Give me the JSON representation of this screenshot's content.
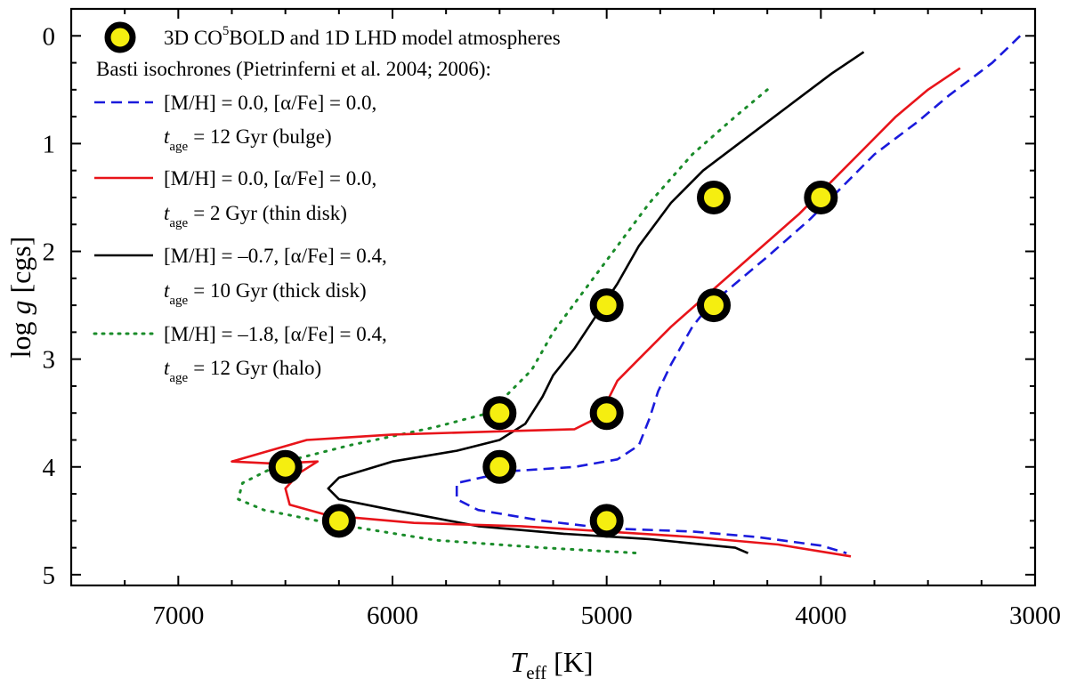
{
  "chart_data": {
    "type": "line",
    "xlabel": "T",
    "xlabel_sub": "eff",
    "xlabel_unit": "[K]",
    "ylabel_prefix": "log ",
    "ylabel_var": "g",
    "ylabel_unit": "[cgs]",
    "xlim": [
      7500,
      3000
    ],
    "ylim": [
      -0.25,
      5.1
    ],
    "x_ticks": [
      7000,
      6000,
      5000,
      4000,
      3000
    ],
    "x_tick_labels": [
      "7000",
      "6000",
      "5000",
      "4000",
      "3000"
    ],
    "y_ticks": [
      0,
      1,
      2,
      3,
      4,
      5
    ],
    "y_tick_labels": [
      "0",
      "1",
      "2",
      "3",
      "4",
      "5"
    ],
    "grid": false,
    "legend": {
      "position": "top-left",
      "models_label_a": "3D CO",
      "models_label_sup": "5",
      "models_label_b": "BOLD and 1D LHD model atmospheres",
      "isochrones_header": "Basti isochrones (Pietrinferni et al. 2004; 2006):",
      "age_sub": "age"
    },
    "models": {
      "name": "3D CO5BOLD and 1D LHD model atmospheres",
      "points": [
        [
          4000,
          1.5
        ],
        [
          4500,
          1.5
        ],
        [
          4500,
          2.5
        ],
        [
          5000,
          2.5
        ],
        [
          5000,
          3.5
        ],
        [
          5500,
          3.5
        ],
        [
          5500,
          4.0
        ],
        [
          6500,
          4.0
        ],
        [
          6250,
          4.5
        ],
        [
          5000,
          4.5
        ]
      ]
    },
    "series": [
      {
        "name": "[M/H] = 0.0, [α/Fe] = 0.0,",
        "age_label": "= 12 Gyr (bulge)",
        "style": "dashed",
        "color": "#1a1adc",
        "points": [
          [
            3070,
            0.0
          ],
          [
            3200,
            0.25
          ],
          [
            3400,
            0.55
          ],
          [
            3550,
            0.8
          ],
          [
            3750,
            1.1
          ],
          [
            3900,
            1.4
          ],
          [
            4050,
            1.7
          ],
          [
            4250,
            2.05
          ],
          [
            4400,
            2.3
          ],
          [
            4520,
            2.5
          ],
          [
            4600,
            2.7
          ],
          [
            4700,
            3.05
          ],
          [
            4760,
            3.3
          ],
          [
            4800,
            3.55
          ],
          [
            4850,
            3.8
          ],
          [
            4950,
            3.93
          ],
          [
            5150,
            4.0
          ],
          [
            5450,
            4.04
          ],
          [
            5700,
            4.15
          ],
          [
            5700,
            4.3
          ],
          [
            5600,
            4.4
          ],
          [
            5300,
            4.5
          ],
          [
            5000,
            4.57
          ],
          [
            4600,
            4.6
          ],
          [
            4300,
            4.65
          ],
          [
            4000,
            4.73
          ],
          [
            3880,
            4.8
          ]
        ]
      },
      {
        "name": "[M/H] = 0.0, [α/Fe] = 0.0,",
        "age_label": "= 2 Gyr (thin disk)",
        "style": "solid",
        "color": "#e8141a",
        "points": [
          [
            3350,
            0.3
          ],
          [
            3500,
            0.5
          ],
          [
            3650,
            0.75
          ],
          [
            3800,
            1.05
          ],
          [
            3950,
            1.35
          ],
          [
            4100,
            1.65
          ],
          [
            4300,
            2.0
          ],
          [
            4500,
            2.35
          ],
          [
            4700,
            2.7
          ],
          [
            4850,
            3.0
          ],
          [
            4950,
            3.2
          ],
          [
            5000,
            3.4
          ],
          [
            5050,
            3.55
          ],
          [
            5150,
            3.65
          ],
          [
            5500,
            3.67
          ],
          [
            6000,
            3.7
          ],
          [
            6400,
            3.75
          ],
          [
            6750,
            3.95
          ],
          [
            6550,
            3.97
          ],
          [
            6350,
            3.95
          ],
          [
            6430,
            4.05
          ],
          [
            6500,
            4.2
          ],
          [
            6480,
            4.35
          ],
          [
            6300,
            4.45
          ],
          [
            5900,
            4.52
          ],
          [
            5400,
            4.55
          ],
          [
            5000,
            4.6
          ],
          [
            4600,
            4.65
          ],
          [
            4200,
            4.72
          ],
          [
            3860,
            4.83
          ]
        ]
      },
      {
        "name": "[M/H] = –0.7, [α/Fe] = 0.4,",
        "age_label": "= 10 Gyr (thick disk)",
        "style": "solid",
        "color": "#000000",
        "points": [
          [
            3800,
            0.15
          ],
          [
            3950,
            0.35
          ],
          [
            4150,
            0.65
          ],
          [
            4350,
            0.95
          ],
          [
            4550,
            1.25
          ],
          [
            4700,
            1.55
          ],
          [
            4850,
            1.95
          ],
          [
            4950,
            2.3
          ],
          [
            5050,
            2.6
          ],
          [
            5150,
            2.9
          ],
          [
            5250,
            3.15
          ],
          [
            5300,
            3.35
          ],
          [
            5380,
            3.6
          ],
          [
            5500,
            3.75
          ],
          [
            5700,
            3.85
          ],
          [
            6000,
            3.95
          ],
          [
            6250,
            4.1
          ],
          [
            6300,
            4.2
          ],
          [
            6250,
            4.3
          ],
          [
            6000,
            4.4
          ],
          [
            5600,
            4.55
          ],
          [
            5200,
            4.62
          ],
          [
            4800,
            4.67
          ],
          [
            4400,
            4.75
          ],
          [
            4340,
            4.8
          ]
        ]
      },
      {
        "name": "[M/H] = –1.8, [α/Fe] = 0.4,",
        "age_label": "= 12 Gyr (halo)",
        "style": "dotted",
        "color": "#1a8c2a",
        "points": [
          [
            4250,
            0.5
          ],
          [
            4400,
            0.75
          ],
          [
            4600,
            1.1
          ],
          [
            4800,
            1.55
          ],
          [
            4950,
            1.95
          ],
          [
            5100,
            2.35
          ],
          [
            5250,
            2.75
          ],
          [
            5350,
            3.1
          ],
          [
            5450,
            3.3
          ],
          [
            5550,
            3.5
          ],
          [
            5800,
            3.63
          ],
          [
            6200,
            3.8
          ],
          [
            6500,
            3.95
          ],
          [
            6700,
            4.15
          ],
          [
            6720,
            4.3
          ],
          [
            6600,
            4.4
          ],
          [
            6300,
            4.52
          ],
          [
            5800,
            4.68
          ],
          [
            5300,
            4.75
          ],
          [
            4850,
            4.8
          ]
        ]
      }
    ]
  }
}
